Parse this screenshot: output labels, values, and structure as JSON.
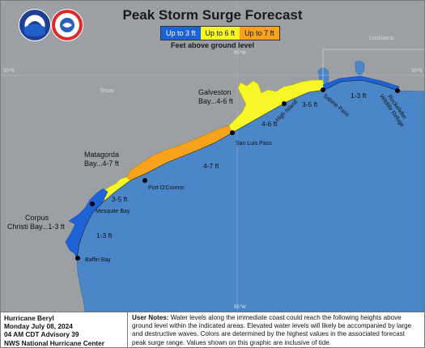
{
  "title": "Peak Storm Surge Forecast",
  "legend": {
    "items": [
      {
        "label": "Up to 3 ft",
        "color": "#1e63d6"
      },
      {
        "label": "Up to 6 ft",
        "color": "#f7f728"
      },
      {
        "label": "Up to 7 ft",
        "color": "#f7a21b"
      }
    ],
    "caption": "Feet above ground level"
  },
  "graticule": {
    "lat_left": "30°N",
    "lat_right": "30°N",
    "lon_top": "95°W",
    "lon_bottom": "95°W"
  },
  "states": {
    "texas": "Texas",
    "louisiana": "Louisiana"
  },
  "bays": {
    "galveston": [
      "Galveston",
      "Bay...4-6 ft"
    ],
    "matagorda": [
      "Matagorda",
      "Bay...4-7 ft"
    ],
    "corpus": [
      "Corpus",
      "Christi Bay...1-3 ft"
    ]
  },
  "places": {
    "rockefeller": [
      "Rockefeller",
      "Wildlife Refuge"
    ],
    "sabine": "Sabine Pass",
    "high_island": "High Island",
    "san_luis": "San Luis Pass",
    "port_oconnor": "Port O'Connor",
    "mesquite": "Mesquite Bay",
    "baffin": "Baffin Bay"
  },
  "ranges": {
    "r1": "1-3 ft",
    "r2": "3-5 ft",
    "r3": "4-6 ft",
    "r4": "4-7 ft",
    "r5": "3-5 ft",
    "r6": "1-3 ft"
  },
  "footer": {
    "storm": "Hurricane Beryl",
    "date": "Monday July 08, 2024",
    "advisory": "04 AM CDT Advisory 39",
    "center": "NWS National Hurricane Center",
    "notes_label": "User Notes:",
    "notes_text": "Water levels along the immediate coast could reach the following heights above ground level within the indicated areas. Elevated water levels will likely be accompanied by large and destructive waves. Colors are determined by the highest values in the associated forecast peak surge range. Values shown on this graphic are inclusive of tide."
  }
}
